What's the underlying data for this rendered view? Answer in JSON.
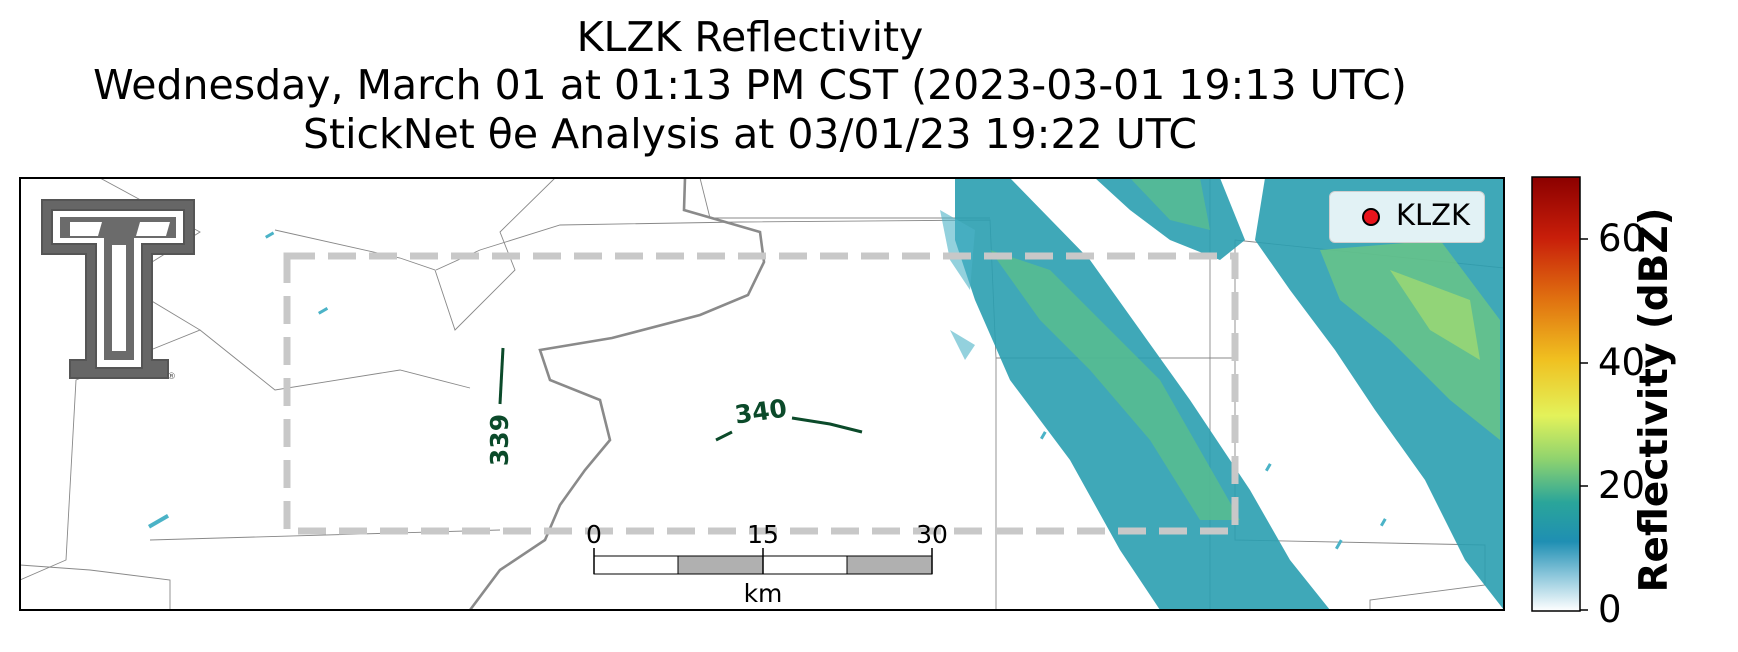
{
  "title": {
    "line1": "KLZK Reflectivity",
    "line2": "Wednesday, March 01 at 01:13 PM CST (2023-03-01 19:13 UTC)",
    "line3": "StickNet θe Analysis at 03/01/23 19:22 UTC"
  },
  "legend": {
    "label": "KLZK",
    "marker_color": "#e8141c"
  },
  "contours": [
    {
      "label": "339",
      "color": "#0b4a2a"
    },
    {
      "label": "340",
      "color": "#0b4a2a"
    }
  ],
  "scale_bar": {
    "ticks": [
      "0",
      "15",
      "30"
    ],
    "unit": "km"
  },
  "colorbar": {
    "title": "Reflectivity (dBZ)",
    "ticks": [
      "0",
      "20",
      "40",
      "60"
    ],
    "range": [
      0,
      70
    ],
    "colors": [
      "#ffffff",
      "#1f8fb3",
      "#2aa59a",
      "#8fd36e",
      "#e3f25a",
      "#f0c020",
      "#e07010",
      "#c81e0a",
      "#8b0000"
    ]
  },
  "logo": {
    "name": "texas-tech-double-t-logo"
  }
}
